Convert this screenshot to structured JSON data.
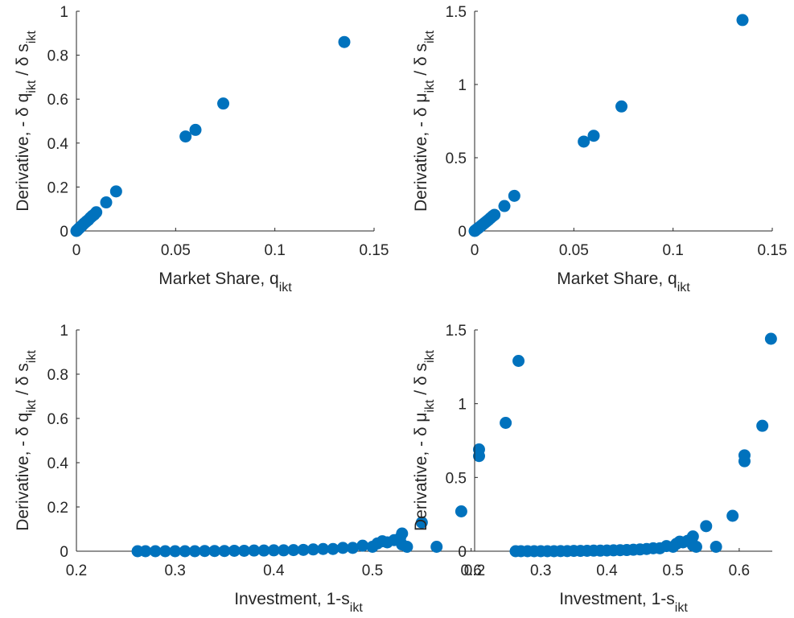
{
  "colors": {
    "marker": "#0072BD",
    "axis": "#262626"
  },
  "chart_data": [
    {
      "type": "scatter",
      "grid": false,
      "xlabel": "Market Share, q_ikt",
      "ylabel": "Derivative, - δ q_ikt / δ s_ikt",
      "xlim": [
        0,
        0.15
      ],
      "ylim": [
        0,
        1
      ],
      "xticks": [
        0,
        0.05,
        0.1,
        0.15
      ],
      "xtick_labels": [
        "0",
        "0.05",
        "0.1",
        "0.15"
      ],
      "yticks": [
        0,
        0.2,
        0.4,
        0.6,
        0.8,
        1
      ],
      "ytick_labels": [
        "0",
        "0.2",
        "0.4",
        "0.6",
        "0.8",
        "1"
      ],
      "points": [
        [
          0.135,
          0.86
        ],
        [
          0.074,
          0.58
        ],
        [
          0.06,
          0.46
        ],
        [
          0.055,
          0.43
        ],
        [
          0.02,
          0.18
        ],
        [
          0.015,
          0.13
        ],
        [
          0.01,
          0.085
        ],
        [
          0.009,
          0.075
        ],
        [
          0.008,
          0.068
        ],
        [
          0.007,
          0.06
        ],
        [
          0.006,
          0.05
        ],
        [
          0.005,
          0.043
        ],
        [
          0.004,
          0.035
        ],
        [
          0.003,
          0.026
        ],
        [
          0.002,
          0.018
        ],
        [
          0.0015,
          0.013
        ],
        [
          0.001,
          0.009
        ],
        [
          0.0005,
          0.004
        ],
        [
          0.0002,
          0.002
        ],
        [
          0.0,
          0.0
        ]
      ]
    },
    {
      "type": "scatter",
      "grid": false,
      "xlabel": "Market Share, q_ikt",
      "ylabel": "Derivative, - δ μ_ikt / δ s_ikt",
      "xlim": [
        0,
        0.15
      ],
      "ylim": [
        0,
        1.5
      ],
      "xticks": [
        0,
        0.05,
        0.1,
        0.15
      ],
      "xtick_labels": [
        "0",
        "0.05",
        "0.1",
        "0.15"
      ],
      "yticks": [
        0,
        0.5,
        1,
        1.5
      ],
      "ytick_labels": [
        "0",
        "0.5",
        "1",
        "1.5"
      ],
      "points": [
        [
          0.135,
          1.44
        ],
        [
          0.074,
          0.85
        ],
        [
          0.06,
          0.65
        ],
        [
          0.055,
          0.61
        ],
        [
          0.02,
          0.24
        ],
        [
          0.015,
          0.17
        ],
        [
          0.01,
          0.11
        ],
        [
          0.009,
          0.1
        ],
        [
          0.008,
          0.088
        ],
        [
          0.007,
          0.076
        ],
        [
          0.006,
          0.065
        ],
        [
          0.005,
          0.054
        ],
        [
          0.004,
          0.043
        ],
        [
          0.003,
          0.032
        ],
        [
          0.002,
          0.021
        ],
        [
          0.0015,
          0.016
        ],
        [
          0.001,
          0.011
        ],
        [
          0.0005,
          0.005
        ],
        [
          0.0002,
          0.002
        ],
        [
          0.0,
          0.0
        ]
      ]
    },
    {
      "type": "scatter",
      "grid": false,
      "xlabel": "Investment, 1-s_ikt",
      "ylabel": "Derivative, - δ q_ikt / δ s_ikt",
      "xlim": [
        0.2,
        0.65
      ],
      "ylim": [
        0,
        1
      ],
      "xticks": [
        0.2,
        0.3,
        0.4,
        0.5,
        0.6
      ],
      "xtick_labels": [
        "0.2",
        "0.3",
        "0.4",
        "0.5",
        "0.6"
      ],
      "yticks": [
        0,
        0.2,
        0.4,
        0.6,
        0.8,
        1
      ],
      "ytick_labels": [
        "0",
        "0.2",
        "0.4",
        "0.6",
        "0.8",
        "1"
      ],
      "points": [
        [
          0.648,
          0.86
        ],
        [
          0.635,
          0.58
        ],
        [
          0.608,
          0.46
        ],
        [
          0.608,
          0.43
        ],
        [
          0.59,
          0.18
        ],
        [
          0.55,
          0.13
        ],
        [
          0.565,
          0.02
        ],
        [
          0.53,
          0.08
        ],
        [
          0.528,
          0.06
        ],
        [
          0.522,
          0.05
        ],
        [
          0.515,
          0.04
        ],
        [
          0.51,
          0.045
        ],
        [
          0.505,
          0.035
        ],
        [
          0.53,
          0.03
        ],
        [
          0.535,
          0.02
        ],
        [
          0.5,
          0.02
        ],
        [
          0.49,
          0.025
        ],
        [
          0.48,
          0.015
        ],
        [
          0.47,
          0.015
        ],
        [
          0.46,
          0.01
        ],
        [
          0.45,
          0.01
        ],
        [
          0.44,
          0.008
        ],
        [
          0.43,
          0.006
        ],
        [
          0.42,
          0.005
        ],
        [
          0.41,
          0.004
        ],
        [
          0.4,
          0.004
        ],
        [
          0.39,
          0.003
        ],
        [
          0.38,
          0.003
        ],
        [
          0.37,
          0.002
        ],
        [
          0.36,
          0.002
        ],
        [
          0.35,
          0.001
        ],
        [
          0.34,
          0.001
        ],
        [
          0.33,
          0.001
        ],
        [
          0.32,
          0.0
        ],
        [
          0.31,
          0.0
        ],
        [
          0.3,
          0.0
        ],
        [
          0.29,
          0.0
        ],
        [
          0.28,
          0.0
        ],
        [
          0.27,
          0.0
        ],
        [
          0.262,
          0.0
        ]
      ]
    },
    {
      "type": "scatter",
      "grid": false,
      "xlabel": "Investment, 1-s_ikt",
      "ylabel": "Derivative, - δ μ_ikt / δ s_ikt",
      "xlim": [
        0.2,
        0.65
      ],
      "ylim": [
        0,
        1.5
      ],
      "xticks": [
        0.2,
        0.3,
        0.4,
        0.5,
        0.6
      ],
      "xtick_labels": [
        "0.2",
        "0.3",
        "0.4",
        "0.5",
        "0.6"
      ],
      "yticks": [
        0,
        0.5,
        1,
        1.5
      ],
      "ytick_labels": [
        "0",
        "0.5",
        "1",
        "1.5"
      ],
      "points": [
        [
          0.648,
          1.44
        ],
        [
          0.635,
          0.85
        ],
        [
          0.608,
          0.65
        ],
        [
          0.608,
          0.61
        ],
        [
          0.59,
          0.24
        ],
        [
          0.55,
          0.17
        ],
        [
          0.565,
          0.03
        ],
        [
          0.53,
          0.1
        ],
        [
          0.528,
          0.08
        ],
        [
          0.522,
          0.07
        ],
        [
          0.515,
          0.06
        ],
        [
          0.51,
          0.065
        ],
        [
          0.505,
          0.05
        ],
        [
          0.53,
          0.04
        ],
        [
          0.535,
          0.03
        ],
        [
          0.5,
          0.03
        ],
        [
          0.49,
          0.035
        ],
        [
          0.48,
          0.02
        ],
        [
          0.47,
          0.02
        ],
        [
          0.46,
          0.015
        ],
        [
          0.45,
          0.012
        ],
        [
          0.44,
          0.01
        ],
        [
          0.43,
          0.008
        ],
        [
          0.42,
          0.007
        ],
        [
          0.41,
          0.006
        ],
        [
          0.4,
          0.005
        ],
        [
          0.39,
          0.004
        ],
        [
          0.38,
          0.004
        ],
        [
          0.37,
          0.003
        ],
        [
          0.36,
          0.002
        ],
        [
          0.35,
          0.002
        ],
        [
          0.34,
          0.001
        ],
        [
          0.33,
          0.001
        ],
        [
          0.32,
          0.0
        ],
        [
          0.31,
          0.0
        ],
        [
          0.3,
          0.0
        ],
        [
          0.29,
          0.0
        ],
        [
          0.28,
          0.0
        ],
        [
          0.27,
          0.0
        ],
        [
          0.262,
          0.0
        ]
      ]
    }
  ]
}
